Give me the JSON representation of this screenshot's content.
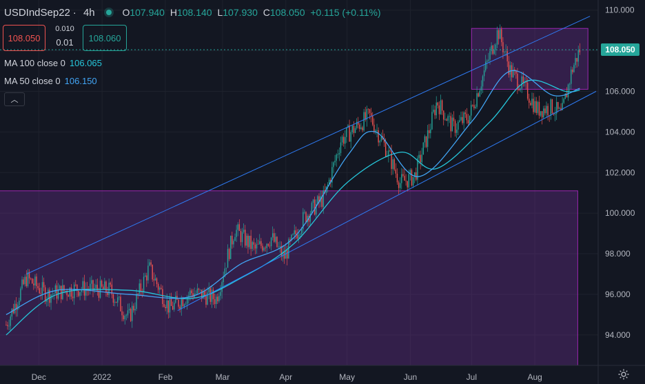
{
  "header": {
    "symbol": "USDIndSep22",
    "timeframe": "4h",
    "open_label": "O",
    "open": "107.940",
    "high_label": "H",
    "high": "108.140",
    "low_label": "L",
    "low": "107.930",
    "close_label": "C",
    "close": "108.050",
    "change": "+0.115 (+0.11%)"
  },
  "trade": {
    "sell_price": "108.050",
    "spread": "0.010",
    "quantity": "0.01",
    "buy_price": "108.060"
  },
  "indicators": [
    {
      "label": "MA 100 close 0",
      "value": "106.065",
      "color": "#26c6da"
    },
    {
      "label": "MA 50 close 0",
      "value": "106.150",
      "color": "#42a5f5"
    }
  ],
  "current_price": {
    "value": "108.050",
    "color": "#26a69a"
  },
  "colors": {
    "background": "#131722",
    "up": "#26a69a",
    "down": "#ef5350",
    "zone": "#5b2f7d",
    "channel": "#2f7cf6"
  },
  "chart_data": {
    "type": "candlestick",
    "ylim": [
      92.5,
      110.5
    ],
    "y_ticks": [
      "110.000",
      "108.000",
      "106.000",
      "104.000",
      "102.000",
      "100.000",
      "98.000",
      "96.000",
      "94.000"
    ],
    "x_ticks": [
      "Dec",
      "2022",
      "Feb",
      "Mar",
      "Apr",
      "May",
      "Jun",
      "Jul",
      "Aug"
    ],
    "price_path": [
      [
        "Nov 15",
        94.5
      ],
      [
        "Nov 25",
        96.8
      ],
      [
        "Dec 5",
        96.0
      ],
      [
        "Dec 20",
        96.3
      ],
      [
        "Jan 5",
        96.2
      ],
      [
        "Jan 14",
        94.8
      ],
      [
        "Jan 24",
        97.3
      ],
      [
        "Feb 3",
        95.3
      ],
      [
        "Feb 14",
        96.1
      ],
      [
        "Feb 26",
        95.8
      ],
      [
        "Mar 7",
        99.2
      ],
      [
        "Mar 17",
        98.2
      ],
      [
        "Mar 25",
        98.8
      ],
      [
        "Mar 31",
        97.8
      ],
      [
        "Apr 10",
        99.8
      ],
      [
        "Apr 20",
        100.8
      ],
      [
        "Apr 28",
        103.6
      ],
      [
        "May 12",
        104.8
      ],
      [
        "May 20",
        103.2
      ],
      [
        "May 27",
        101.5
      ],
      [
        "Jun 3",
        101.8
      ],
      [
        "Jun 10",
        104.0
      ],
      [
        "Jun 14",
        105.5
      ],
      [
        "Jun 22",
        104.2
      ],
      [
        "Jun 30",
        104.8
      ],
      [
        "Jul 14",
        109.0
      ],
      [
        "Jul 20",
        107.0
      ],
      [
        "Jul 28",
        106.0
      ],
      [
        "Aug 2",
        105.1
      ],
      [
        "Aug 10",
        105.2
      ],
      [
        "Aug 14",
        104.8
      ],
      [
        "Aug 19",
        107.0
      ],
      [
        "Aug 23",
        108.05
      ]
    ],
    "ma100": [
      [
        "Nov 15",
        94.0
      ],
      [
        "Dec 10",
        96.0
      ],
      [
        "Jan 14",
        96.2
      ],
      [
        "Feb 14",
        95.8
      ],
      [
        "Mar 10",
        96.8
      ],
      [
        "Apr 5",
        98.5
      ],
      [
        "May 1",
        101.5
      ],
      [
        "May 27",
        103.0
      ],
      [
        "Jun 14",
        102.2
      ],
      [
        "Jul 10",
        104.5
      ],
      [
        "Jul 28",
        106.5
      ],
      [
        "Aug 16",
        106.0
      ],
      [
        "Aug 23",
        106.065
      ]
    ],
    "ma50": [
      [
        "Nov 15",
        95.0
      ],
      [
        "Dec 10",
        96.2
      ],
      [
        "Jan 14",
        96.0
      ],
      [
        "Feb 14",
        95.9
      ],
      [
        "Mar 10",
        97.5
      ],
      [
        "Apr 5",
        98.8
      ],
      [
        "May 1",
        102.8
      ],
      [
        "May 15",
        104.0
      ],
      [
        "Jun 5",
        101.8
      ],
      [
        "Jul 1",
        104.5
      ],
      [
        "Jul 20",
        107.0
      ],
      [
        "Aug 10",
        105.8
      ],
      [
        "Aug 23",
        106.15
      ]
    ],
    "channel_upper": [
      [
        "Nov 25",
        97.0
      ],
      [
        "Aug 28",
        109.7
      ]
    ],
    "channel_lower": [
      [
        "Feb 7",
        95.2
      ],
      [
        "Aug 31",
        106.0
      ]
    ],
    "zones": [
      {
        "y_top": 101.1,
        "y_bottom": 92.5,
        "x_start": "Nov 1",
        "x_end": "Aug 22"
      },
      {
        "y_top": 109.1,
        "y_bottom": 106.1,
        "x_start": "Jul 1",
        "x_end": "Aug 27"
      }
    ]
  }
}
